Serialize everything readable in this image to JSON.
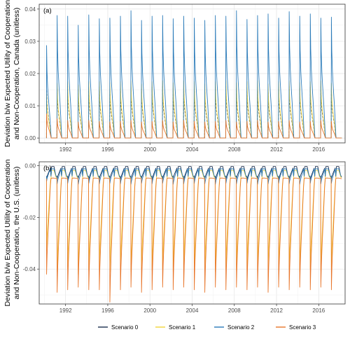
{
  "chart_data": [
    {
      "type": "line",
      "panel_label": "(a)",
      "ylabel_lines": [
        "Deviation b/w Expected Utility of Cooperation",
        "and Non-Cooperation, Canada (unitless)"
      ],
      "xlim": [
        1989.5,
        2018.5
      ],
      "ylim": [
        -0.0015,
        0.0415
      ],
      "x_ticks": [
        1992,
        1996,
        2000,
        2004,
        2008,
        2012,
        2016
      ],
      "y_ticks": [
        0.0,
        0.01,
        0.02,
        0.03,
        0.04
      ],
      "y_tick_labels": [
        "0.00",
        "0.01",
        "0.02",
        "0.03",
        "0.04"
      ],
      "grid": true,
      "cycle": {
        "start_year": 1990.2,
        "end_year": 2017.75,
        "period_years": 1
      },
      "series": [
        {
          "key": "s0",
          "color": "#1b2f4f",
          "dash": "3,2",
          "baseline": 0,
          "peaks": [
            0.015,
            0.0155,
            0.016,
            0.015,
            0.0158,
            0.016,
            0.0155,
            0.0158,
            0.016,
            0.0152,
            0.0158,
            0.016,
            0.0155,
            0.016,
            0.0158,
            0.0152,
            0.0158,
            0.016,
            0.0155,
            0.0158,
            0.016,
            0.0152,
            0.0158,
            0.016,
            0.0155,
            0.0158,
            0.016,
            0.0155
          ]
        },
        {
          "key": "s1",
          "color": "#f2d43a",
          "dash": "",
          "baseline": 0,
          "peaks": [
            0.014,
            0.017,
            0.0175,
            0.0165,
            0.0175,
            0.0175,
            0.0172,
            0.0175,
            0.0178,
            0.0168,
            0.0175,
            0.0178,
            0.0172,
            0.0178,
            0.0175,
            0.0168,
            0.0175,
            0.0178,
            0.0172,
            0.0175,
            0.0178,
            0.0168,
            0.0175,
            0.0178,
            0.0172,
            0.0175,
            0.0178,
            0.017
          ]
        },
        {
          "key": "s2",
          "color": "#2b7bb9",
          "dash": "",
          "baseline": 0,
          "peaks": [
            0.0287,
            0.038,
            0.0378,
            0.035,
            0.0382,
            0.037,
            0.0372,
            0.0378,
            0.0395,
            0.0365,
            0.0378,
            0.038,
            0.037,
            0.0378,
            0.0372,
            0.0365,
            0.038,
            0.0378,
            0.0395,
            0.0368,
            0.038,
            0.0385,
            0.0372,
            0.0392,
            0.0378,
            0.0385,
            0.0372,
            0.0375
          ]
        },
        {
          "key": "s3",
          "color": "#e8762b",
          "dash": "",
          "baseline": 0,
          "peaks": [
            0.0075,
            0.006,
            0.0055,
            0.005,
            0.0055,
            0.0052,
            0.005,
            0.0052,
            0.0055,
            0.005,
            0.0052,
            0.0055,
            0.005,
            0.0055,
            0.0052,
            0.005,
            0.0052,
            0.0055,
            0.005,
            0.0052,
            0.0055,
            0.005,
            0.0052,
            0.0055,
            0.005,
            0.0052,
            0.0055,
            0.0052
          ]
        }
      ]
    },
    {
      "type": "line",
      "panel_label": "(b)",
      "ylabel_lines": [
        "Deviation b/w Expected Utility of Cooperation",
        "and Non-Cooperation, the U.S. (unitless)"
      ],
      "xlim": [
        1989.5,
        2018.5
      ],
      "ylim": [
        -0.0535,
        0.0015
      ],
      "x_ticks": [
        1992,
        1996,
        2000,
        2004,
        2008,
        2012,
        2016
      ],
      "x_tick_labels": [
        "1992",
        "1996",
        "2000",
        "2004",
        "2008",
        "2012",
        "2016"
      ],
      "y_ticks": [
        0.0,
        -0.02,
        -0.04
      ],
      "y_tick_labels": [
        "0.00",
        "-0.02",
        "-0.04"
      ],
      "grid": true,
      "cycle": {
        "start_year": 1990.2,
        "end_year": 2017.75,
        "period_years": 1
      },
      "series": [
        {
          "key": "s0",
          "color": "#1b2f4f",
          "dash": "",
          "baseline": -0.0043,
          "high": -0.0003,
          "troughs": [
            -0.005,
            -0.0052,
            -0.0055,
            -0.005,
            -0.0055,
            -0.0052,
            -0.005,
            -0.0055,
            -0.0052,
            -0.005,
            -0.0055,
            -0.0052,
            -0.005,
            -0.0055,
            -0.0052,
            -0.005,
            -0.0055,
            -0.0052,
            -0.005,
            -0.0055,
            -0.0052,
            -0.005,
            -0.0055,
            -0.0052,
            -0.005,
            -0.0055,
            -0.0052,
            -0.005
          ]
        },
        {
          "key": "s1",
          "color": "#f2d43a",
          "dash": "",
          "baseline": -0.0045,
          "high": -0.0018,
          "troughs": [
            -0.033,
            -0.041,
            -0.04,
            -0.042,
            -0.0405,
            -0.04,
            -0.041,
            -0.04,
            -0.041,
            -0.04,
            -0.0405,
            -0.04,
            -0.041,
            -0.04,
            -0.0405,
            -0.04,
            -0.041,
            -0.04,
            -0.0405,
            -0.04,
            -0.041,
            -0.04,
            -0.0405,
            -0.04,
            -0.041,
            -0.04,
            -0.0405,
            -0.04
          ]
        },
        {
          "key": "s2",
          "color": "#2b7bb9",
          "dash": "",
          "baseline": -0.004,
          "high": -0.0012,
          "troughs": [
            -0.006,
            -0.007,
            -0.0068,
            -0.0072,
            -0.0068,
            -0.007,
            -0.0068,
            -0.007,
            -0.0072,
            -0.0068,
            -0.007,
            -0.0068,
            -0.0072,
            -0.007,
            -0.0068,
            -0.007,
            -0.0072,
            -0.0068,
            -0.007,
            -0.0068,
            -0.0072,
            -0.007,
            -0.0068,
            -0.007,
            -0.0072,
            -0.0068,
            -0.007,
            -0.0068
          ]
        },
        {
          "key": "s3",
          "color": "#e8762b",
          "dash": "",
          "baseline": -0.005,
          "high": -0.0048,
          "troughs": [
            -0.042,
            -0.049,
            -0.048,
            -0.047,
            -0.048,
            -0.048,
            -0.0528,
            -0.048,
            -0.047,
            -0.049,
            -0.048,
            -0.047,
            -0.048,
            -0.047,
            -0.048,
            -0.049,
            -0.047,
            -0.048,
            -0.047,
            -0.048,
            -0.047,
            -0.049,
            -0.047,
            -0.048,
            -0.047,
            -0.048,
            -0.047,
            -0.048
          ]
        }
      ]
    }
  ],
  "legend": {
    "placement": "bottom",
    "items": [
      {
        "label": "Scenario 0",
        "color": "#1b2f4f"
      },
      {
        "label": "Scenario 1",
        "color": "#f2d43a"
      },
      {
        "label": "Scenario 2",
        "color": "#2b7bb9"
      },
      {
        "label": "Scenario 3",
        "color": "#e8762b"
      }
    ]
  }
}
